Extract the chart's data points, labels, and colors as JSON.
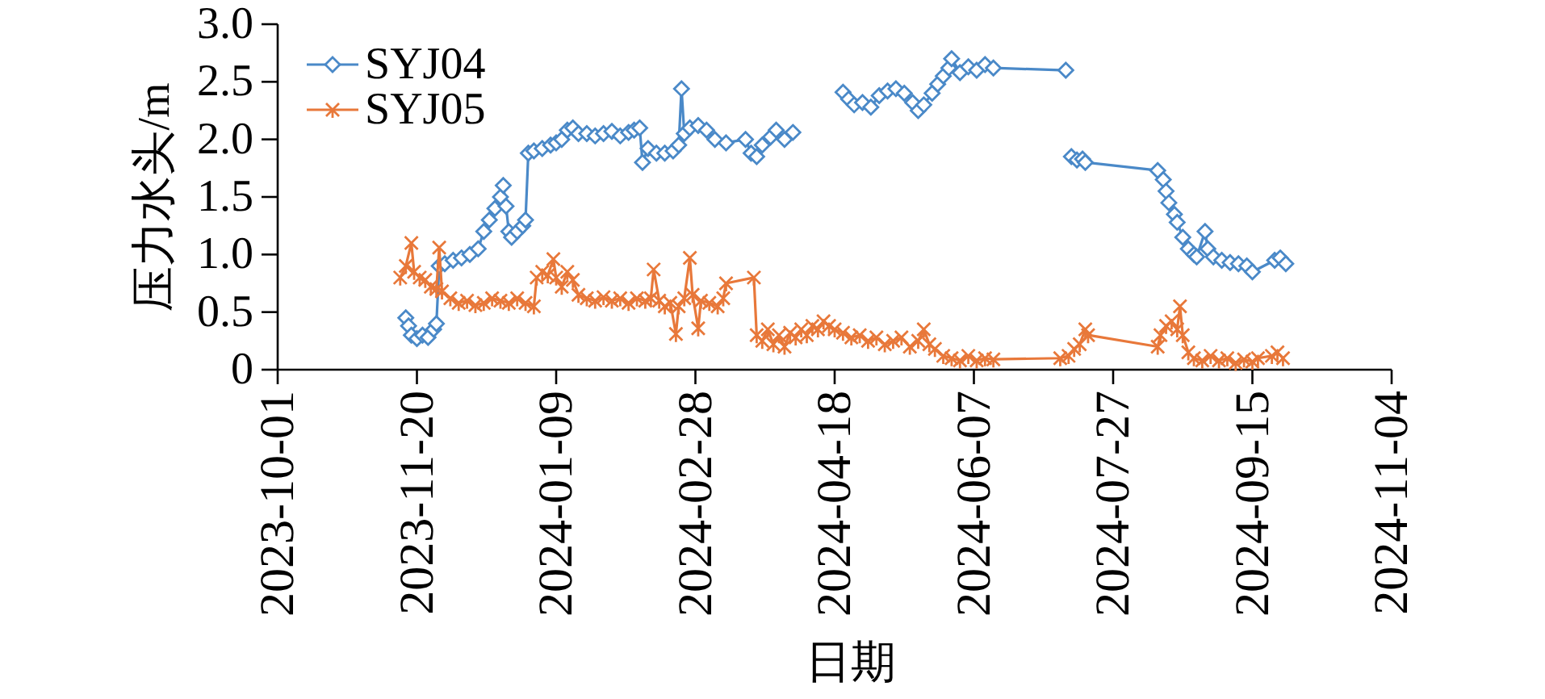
{
  "chart_data": {
    "type": "line",
    "xlabel": "日期",
    "ylabel": "压力水头/m",
    "xlim": [
      "2023-10-01",
      "2024-11-04"
    ],
    "xticks": [
      "2023-10-01",
      "2023-11-20",
      "2024-01-09",
      "2024-02-28",
      "2024-04-18",
      "2024-06-07",
      "2024-07-27",
      "2024-09-15",
      "2024-11-04"
    ],
    "ylim": [
      0,
      3
    ],
    "yticks": [
      0,
      0.5,
      {
        "value": 1,
        "label": "1.0"
      },
      1.5,
      {
        "value": 2,
        "label": "2.0"
      },
      2.5,
      {
        "value": 3,
        "label": "3.0"
      }
    ],
    "legend": "top left",
    "line_style": "solid",
    "series": [
      {
        "name": "SYJ04",
        "color": "#4a89c8",
        "marker": "diamond",
        "x": [
          "2023-11-16",
          "2023-11-17",
          "2023-11-18",
          "2023-11-20",
          "2023-11-22",
          "2023-11-24",
          "2023-11-26",
          "2023-11-27",
          "2023-11-28",
          "2023-11-30",
          "2023-12-03",
          "2023-12-06",
          "2023-12-09",
          "2023-12-12",
          "2023-12-14",
          "2023-12-16",
          "2023-12-18",
          "2023-12-20",
          "2023-12-21",
          "2023-12-22",
          "2023-12-23",
          "2023-12-24",
          "2023-12-26",
          "2023-12-28",
          "2023-12-29",
          "2023-12-30",
          "2024-01-01",
          "2024-01-04",
          "2024-01-07",
          "2024-01-09",
          "2024-01-11",
          "2024-01-13",
          "2024-01-15",
          "2024-01-17",
          "2024-01-20",
          "2024-01-23",
          "2024-01-26",
          "2024-01-29",
          "2024-02-01",
          "2024-02-04",
          "2024-02-06",
          "2024-02-08",
          "2024-02-09",
          "2024-02-11",
          "2024-02-14",
          "2024-02-17",
          "2024-02-20",
          "2024-02-22",
          "2024-02-23",
          "2024-02-24",
          "2024-02-26",
          "2024-02-29",
          "2024-03-03",
          "2024-03-06",
          "2024-03-10",
          "2024-03-17",
          "2024-03-19",
          "2024-03-21",
          "2024-03-23",
          "2024-03-26",
          "2024-03-28",
          "2024-03-31",
          "2024-04-03",
          "2024-04-12",
          "2024-04-21",
          "2024-04-23",
          "2024-04-25",
          "2024-04-28",
          "2024-05-01",
          "2024-05-04",
          "2024-05-07",
          "2024-05-10",
          "2024-05-13",
          "2024-05-16",
          "2024-05-18",
          "2024-05-20",
          "2024-05-23",
          "2024-05-25",
          "2024-05-27",
          "2024-05-29",
          "2024-05-30",
          "2024-06-02",
          "2024-06-05",
          "2024-06-08",
          "2024-06-11",
          "2024-06-14",
          "2024-07-10",
          "2024-07-11",
          "2024-07-12",
          "2024-07-14",
          "2024-07-16",
          "2024-07-17",
          "2024-08-12",
          "2024-08-14",
          "2024-08-15",
          "2024-08-16",
          "2024-08-18",
          "2024-08-19",
          "2024-08-21",
          "2024-08-23",
          "2024-08-25",
          "2024-08-26",
          "2024-08-29",
          "2024-08-30",
          "2024-09-01",
          "2024-09-04",
          "2024-09-07",
          "2024-09-10",
          "2024-09-13",
          "2024-09-15",
          "2024-09-23",
          "2024-09-25",
          "2024-09-27"
        ],
        "values": [
          0.45,
          0.38,
          0.3,
          0.27,
          0.3,
          0.28,
          0.35,
          0.4,
          0.9,
          0.92,
          0.95,
          0.97,
          1.0,
          1.05,
          1.2,
          1.3,
          1.4,
          1.5,
          1.6,
          1.42,
          1.2,
          1.15,
          1.2,
          1.25,
          1.3,
          1.88,
          1.9,
          1.92,
          1.95,
          1.97,
          2.0,
          2.08,
          2.1,
          2.05,
          2.05,
          2.03,
          2.05,
          2.07,
          2.03,
          2.06,
          2.08,
          2.1,
          1.8,
          1.92,
          1.88,
          1.88,
          1.9,
          1.95,
          2.44,
          2.05,
          2.1,
          2.12,
          2.08,
          2.0,
          1.97,
          2.0,
          1.88,
          1.85,
          1.95,
          2.02,
          2.08,
          2.0,
          2.06,
          null,
          2.41,
          2.35,
          2.3,
          2.32,
          2.28,
          2.38,
          2.42,
          2.44,
          2.4,
          2.32,
          2.25,
          2.3,
          2.4,
          2.48,
          2.55,
          2.62,
          2.7,
          2.58,
          2.63,
          2.6,
          2.65,
          2.62,
          2.6,
          null,
          1.85,
          1.82,
          1.83,
          1.8,
          1.73,
          1.65,
          1.55,
          1.45,
          1.35,
          1.28,
          1.15,
          1.05,
          1.0,
          0.98,
          1.2,
          1.05,
          0.98,
          0.95,
          0.93,
          0.92,
          0.9,
          0.85,
          0.95,
          0.97,
          0.92
        ]
      },
      {
        "name": "SYJ05",
        "color": "#e8783a",
        "marker": "cross",
        "x": [
          "2023-11-14",
          "2023-11-16",
          "2023-11-18",
          "2023-11-19",
          "2023-11-21",
          "2023-11-23",
          "2023-11-25",
          "2023-11-27",
          "2023-11-28",
          "2023-11-29",
          "2023-12-02",
          "2023-12-05",
          "2023-12-08",
          "2023-12-11",
          "2023-12-14",
          "2023-12-17",
          "2023-12-20",
          "2023-12-23",
          "2023-12-26",
          "2023-12-29",
          "2024-01-01",
          "2024-01-02",
          "2024-01-04",
          "2024-01-06",
          "2024-01-08",
          "2024-01-09",
          "2024-01-11",
          "2024-01-13",
          "2024-01-15",
          "2024-01-17",
          "2024-01-20",
          "2024-01-23",
          "2024-01-26",
          "2024-01-29",
          "2024-02-01",
          "2024-02-04",
          "2024-02-07",
          "2024-02-10",
          "2024-02-12",
          "2024-02-13",
          "2024-02-15",
          "2024-02-17",
          "2024-02-19",
          "2024-02-21",
          "2024-02-22",
          "2024-02-24",
          "2024-02-26",
          "2024-02-27",
          "2024-02-29",
          "2024-03-01",
          "2024-03-04",
          "2024-03-07",
          "2024-03-09",
          "2024-03-10",
          "2024-03-20",
          "2024-03-21",
          "2024-03-23",
          "2024-03-25",
          "2024-03-27",
          "2024-03-29",
          "2024-03-31",
          "2024-04-02",
          "2024-04-04",
          "2024-04-06",
          "2024-04-08",
          "2024-04-10",
          "2024-04-12",
          "2024-04-14",
          "2024-04-16",
          "2024-04-18",
          "2024-04-21",
          "2024-04-24",
          "2024-04-27",
          "2024-04-30",
          "2024-05-03",
          "2024-05-06",
          "2024-05-09",
          "2024-05-12",
          "2024-05-15",
          "2024-05-18",
          "2024-05-20",
          "2024-05-22",
          "2024-05-24",
          "2024-05-27",
          "2024-05-30",
          "2024-06-02",
          "2024-06-05",
          "2024-06-08",
          "2024-06-11",
          "2024-06-14",
          "2024-07-08",
          "2024-07-11",
          "2024-07-13",
          "2024-07-15",
          "2024-07-17",
          "2024-07-18",
          "2024-08-12",
          "2024-08-13",
          "2024-08-15",
          "2024-08-17",
          "2024-08-19",
          "2024-08-20",
          "2024-08-21",
          "2024-08-23",
          "2024-08-25",
          "2024-08-28",
          "2024-08-31",
          "2024-09-03",
          "2024-09-06",
          "2024-09-09",
          "2024-09-12",
          "2024-09-15",
          "2024-09-17",
          "2024-09-22",
          "2024-09-24",
          "2024-09-26"
        ],
        "values": [
          0.8,
          0.9,
          1.1,
          0.85,
          0.8,
          0.78,
          0.72,
          0.7,
          1.06,
          0.68,
          0.62,
          0.58,
          0.6,
          0.56,
          0.58,
          0.62,
          0.6,
          0.58,
          0.62,
          0.58,
          0.55,
          0.8,
          0.85,
          0.82,
          0.96,
          0.8,
          0.72,
          0.85,
          0.78,
          0.65,
          0.62,
          0.6,
          0.63,
          0.6,
          0.62,
          0.58,
          0.62,
          0.6,
          0.62,
          0.87,
          0.6,
          0.55,
          0.58,
          0.31,
          0.55,
          0.62,
          0.97,
          0.65,
          0.36,
          0.6,
          0.58,
          0.55,
          0.62,
          0.75,
          0.8,
          0.3,
          0.25,
          0.35,
          0.22,
          0.3,
          0.2,
          0.32,
          0.28,
          0.35,
          0.3,
          0.38,
          0.35,
          0.42,
          0.38,
          0.35,
          0.32,
          0.28,
          0.3,
          0.25,
          0.28,
          0.22,
          0.25,
          0.28,
          0.2,
          0.25,
          0.35,
          0.22,
          0.18,
          0.12,
          0.1,
          0.08,
          0.12,
          0.08,
          0.1,
          0.09,
          0.1,
          0.12,
          0.18,
          0.22,
          0.35,
          0.3,
          0.2,
          0.3,
          0.38,
          0.42,
          0.35,
          0.55,
          0.3,
          0.15,
          0.1,
          0.08,
          0.12,
          0.08,
          0.1,
          0.06,
          0.09,
          0.07,
          0.1,
          0.12,
          0.15,
          0.1
        ]
      }
    ]
  }
}
